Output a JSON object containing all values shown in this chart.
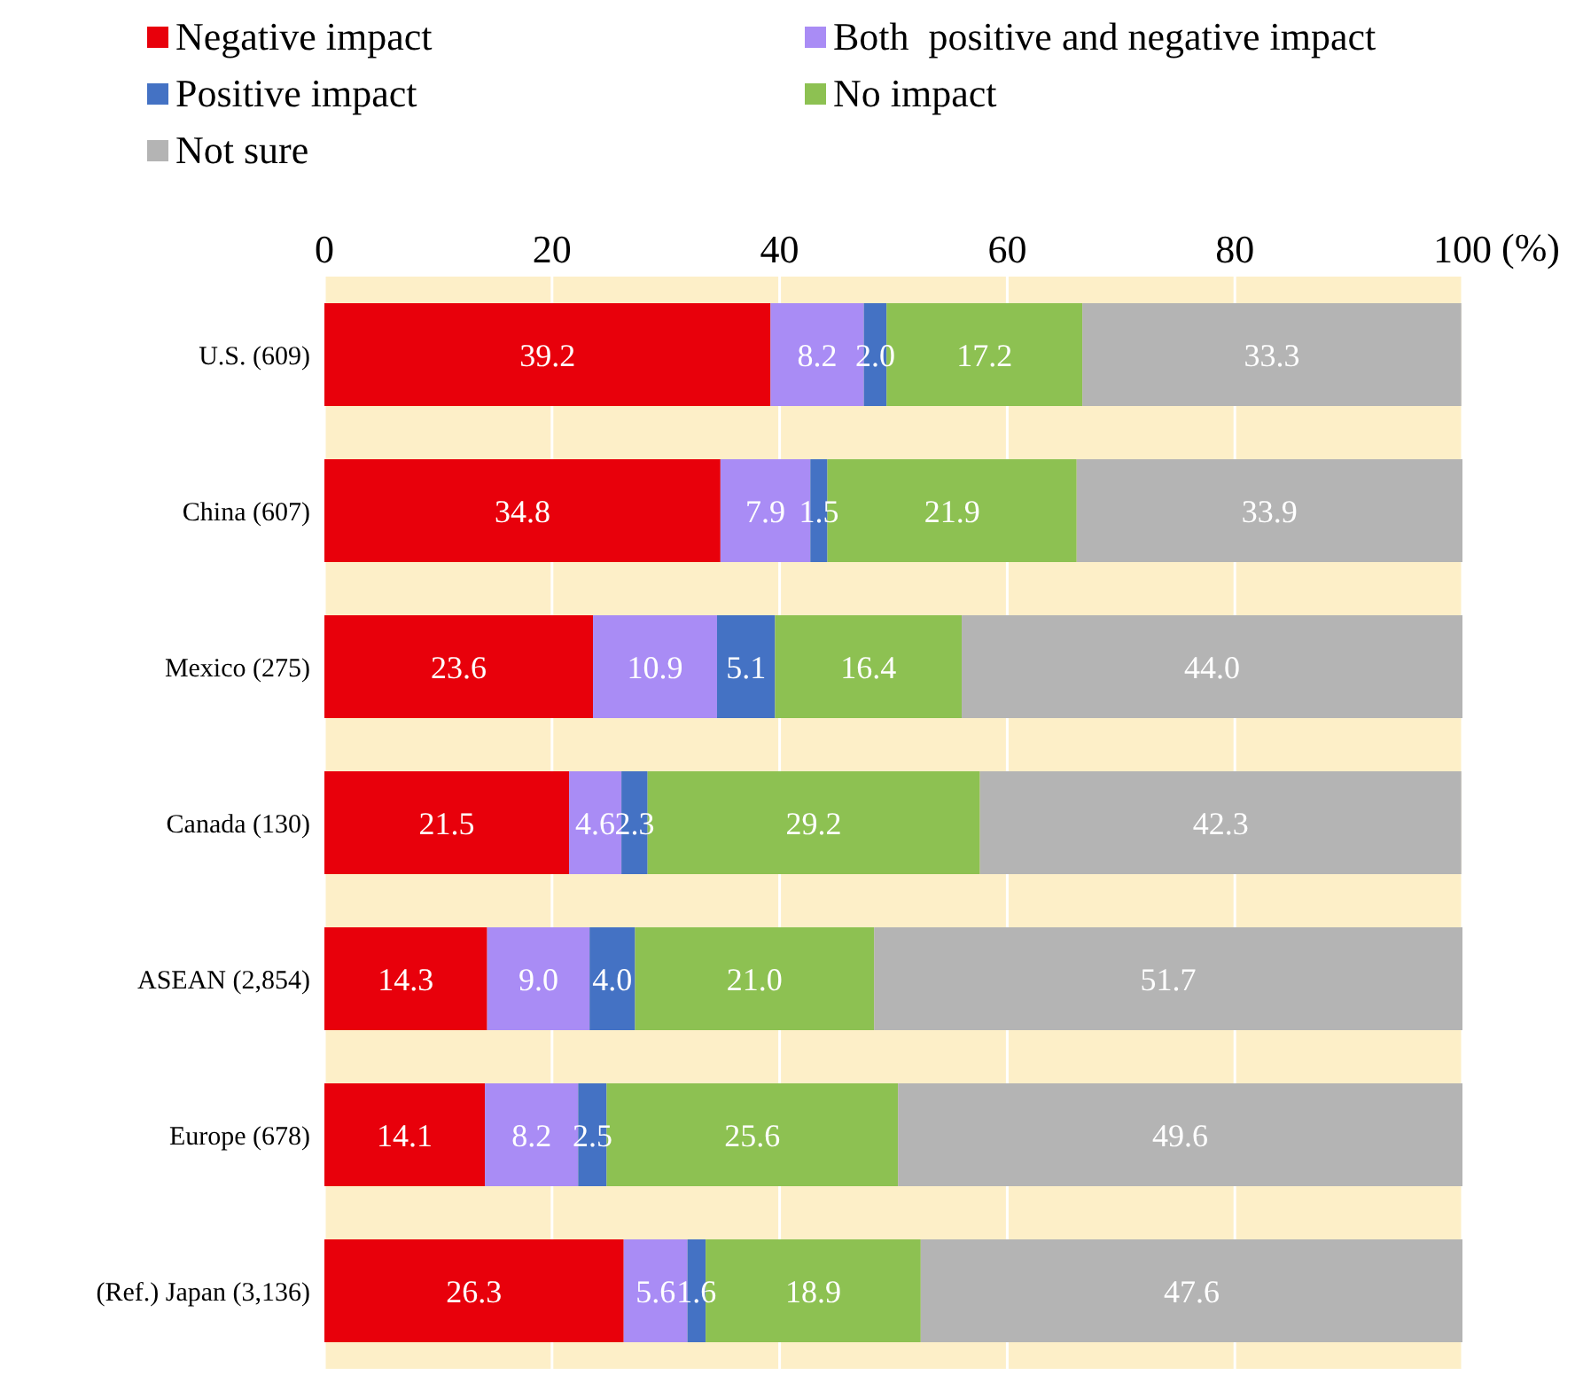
{
  "chart_data": {
    "type": "bar",
    "orientation": "horizontal",
    "stacked": true,
    "grid": "x",
    "legend": "top",
    "xlabel": "(%)",
    "categories": [
      "U.S. (609)",
      "China (607)",
      "Mexico (275)",
      "Canada (130)",
      "ASEAN (2,854)",
      "Europe (678)",
      "(Ref.) Japan (3,136)"
    ],
    "xlim": [
      0,
      100
    ],
    "xticks": [
      0,
      20,
      40,
      60,
      80,
      100
    ],
    "series": [
      {
        "name": "Negative impact",
        "color": "#e8000b",
        "values": [
          39.2,
          34.8,
          23.6,
          21.5,
          14.3,
          14.1,
          26.3
        ],
        "value_labels": [
          "39.2",
          "34.8",
          "23.6",
          "21.5",
          "14.3",
          "14.1",
          "26.3"
        ]
      },
      {
        "name": "Both  positive and negative impact",
        "color": "#a98cf5",
        "values": [
          8.2,
          7.9,
          10.9,
          4.6,
          9.0,
          8.2,
          5.6
        ],
        "value_labels": [
          "8.2",
          "7.9",
          "10.9",
          "4.6",
          "9.0",
          "8.2",
          "5.6"
        ]
      },
      {
        "name": "Positive impact",
        "color": "#4472c4",
        "values": [
          2.0,
          1.5,
          5.1,
          2.3,
          4.0,
          2.5,
          1.6
        ],
        "value_labels": [
          "2.0",
          "1.5",
          "5.1",
          "2.3",
          "4.0",
          "2.5",
          "1.6"
        ]
      },
      {
        "name": "No impact",
        "color": "#8dc152",
        "values": [
          17.2,
          21.9,
          16.4,
          29.2,
          21.0,
          25.6,
          18.9
        ],
        "value_labels": [
          "17.2",
          "21.9",
          "16.4",
          "29.2",
          "21.0",
          "25.6",
          "18.9"
        ]
      },
      {
        "name": "Not sure",
        "color": "#b4b4b4",
        "values": [
          33.3,
          33.9,
          44.0,
          42.3,
          51.7,
          49.6,
          47.6
        ],
        "value_labels": [
          "33.3",
          "33.9",
          "44.0",
          "42.3",
          "51.7",
          "49.6",
          "47.6"
        ]
      }
    ]
  }
}
